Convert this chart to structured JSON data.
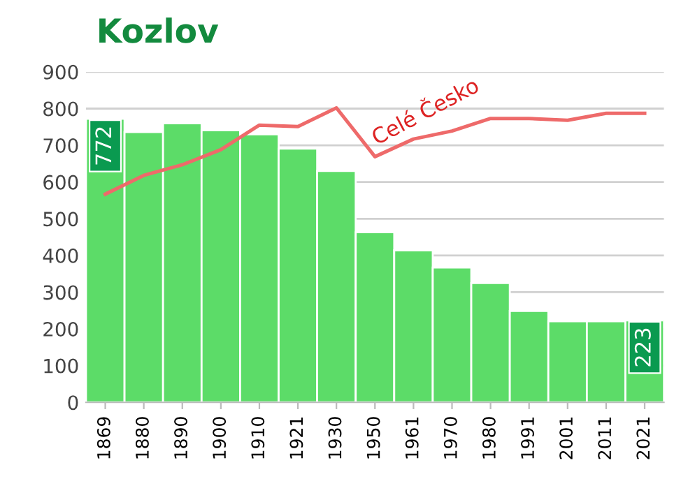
{
  "chart_data": {
    "type": "bar",
    "title": "Kozlov",
    "categories": [
      "1869",
      "1880",
      "1890",
      "1900",
      "1910",
      "1921",
      "1930",
      "1950",
      "1961",
      "1970",
      "1980",
      "1991",
      "2001",
      "2011",
      "2021"
    ],
    "series": [
      {
        "color": "#5cdc68",
        "values": [
          772,
          736,
          760,
          741,
          730,
          691,
          630,
          463,
          414,
          367,
          325,
          249,
          221,
          221,
          223
        ],
        "value_labels": [
          "772",
          null,
          null,
          null,
          null,
          null,
          null,
          null,
          null,
          null,
          null,
          null,
          null,
          null,
          "223"
        ]
      },
      {
        "type": "line",
        "name": "Celé Česko",
        "color": "#ee6a6a",
        "values": [
          567,
          618,
          647,
          688,
          755,
          751,
          802,
          669,
          717,
          739,
          773,
          773,
          768,
          787,
          787
        ]
      }
    ],
    "ylim": [
      0,
      900
    ],
    "yticks": [
      0,
      100,
      200,
      300,
      400,
      500,
      600,
      700,
      800,
      900
    ],
    "grid": "y",
    "legend": false
  }
}
